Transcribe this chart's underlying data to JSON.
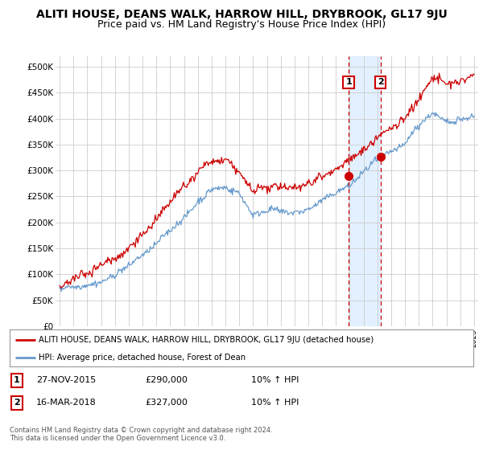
{
  "title": "ALITI HOUSE, DEANS WALK, HARROW HILL, DRYBROOK, GL17 9JU",
  "subtitle": "Price paid vs. HM Land Registry's House Price Index (HPI)",
  "ylabel_ticks": [
    "£0",
    "£50K",
    "£100K",
    "£150K",
    "£200K",
    "£250K",
    "£300K",
    "£350K",
    "£400K",
    "£450K",
    "£500K"
  ],
  "ylabel_values": [
    0,
    50000,
    100000,
    150000,
    200000,
    250000,
    300000,
    350000,
    400000,
    450000,
    500000
  ],
  "ylim": [
    0,
    520000
  ],
  "xlim_start": 1994.7,
  "xlim_end": 2025.3,
  "sale1_x": 2015.92,
  "sale1_y": 290000,
  "sale1_label": "1",
  "sale2_x": 2018.22,
  "sale2_y": 327000,
  "sale2_label": "2",
  "red_line_color": "#cc0000",
  "blue_line_color": "#6699cc",
  "sale_marker_color": "#cc0000",
  "shaded_region_color": "#ddeeff",
  "legend_house_label": "ALITI HOUSE, DEANS WALK, HARROW HILL, DRYBROOK, GL17 9JU (detached house)",
  "legend_hpi_label": "HPI: Average price, detached house, Forest of Dean",
  "table_row1": [
    "1",
    "27-NOV-2015",
    "£290,000",
    "10% ↑ HPI"
  ],
  "table_row2": [
    "2",
    "16-MAR-2018",
    "£327,000",
    "10% ↑ HPI"
  ],
  "footer": "Contains HM Land Registry data © Crown copyright and database right 2024.\nThis data is licensed under the Open Government Licence v3.0.",
  "background_color": "#ffffff",
  "grid_color": "#cccccc",
  "title_fontsize": 10,
  "subtitle_fontsize": 9,
  "hpi_anchors_x": [
    1995,
    1996,
    1997,
    1998,
    1999,
    2000,
    2001,
    2002,
    2003,
    2004,
    2005,
    2006,
    2007,
    2008,
    2009,
    2010,
    2011,
    2012,
    2013,
    2014,
    2015,
    2016,
    2017,
    2018,
    2019,
    2020,
    2021,
    2022,
    2023,
    2024,
    2025
  ],
  "hpi_anchors_y": [
    70000,
    77000,
    85000,
    95000,
    108000,
    125000,
    148000,
    168000,
    195000,
    220000,
    248000,
    268000,
    275000,
    255000,
    215000,
    225000,
    225000,
    222000,
    228000,
    240000,
    252000,
    270000,
    295000,
    315000,
    330000,
    345000,
    375000,
    405000,
    390000,
    395000,
    400000
  ],
  "red_anchors_x": [
    1995,
    1996,
    1997,
    1998,
    1999,
    2000,
    2001,
    2002,
    2003,
    2004,
    2005,
    2006,
    2007,
    2008,
    2009,
    2010,
    2011,
    2012,
    2013,
    2014,
    2015,
    2016,
    2017,
    2018,
    2019,
    2020,
    2021,
    2022,
    2023,
    2024,
    2025
  ],
  "red_anchors_y": [
    75000,
    83000,
    92000,
    103000,
    118000,
    138000,
    162000,
    185000,
    212000,
    240000,
    268000,
    288000,
    295000,
    272000,
    230000,
    238000,
    240000,
    238000,
    244000,
    258000,
    270000,
    292000,
    318000,
    340000,
    352000,
    368000,
    400000,
    438000,
    420000,
    425000,
    432000
  ],
  "noise_seed": 42,
  "hpi_noise_std": 6000,
  "red_noise_std": 7000
}
